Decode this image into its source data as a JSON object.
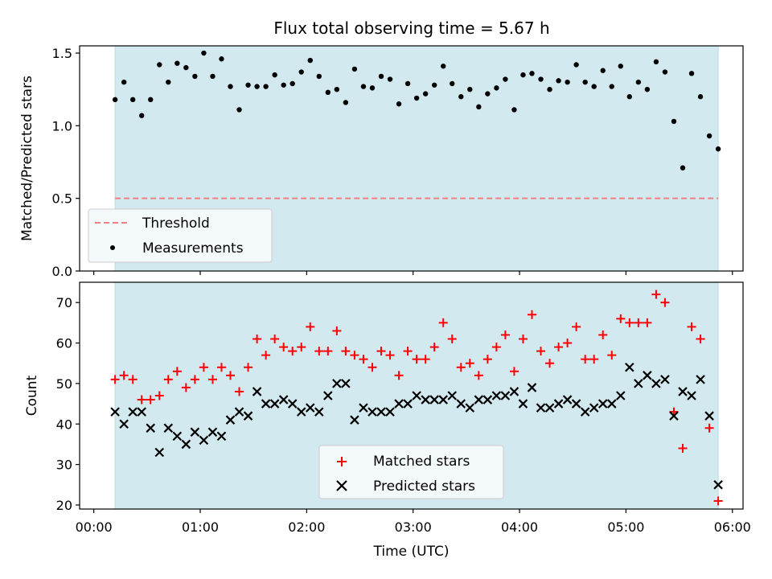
{
  "title": "Flux total observing time = 5.67 h",
  "colors": {
    "shade": "#d3e9f0",
    "shade_edge": "#b8dbe6",
    "threshold": "#f08080",
    "measurement": "#000000",
    "matched": "#ff0000",
    "predicted": "#000000",
    "axes": "#000000",
    "legend_bg": "#f4f9fb"
  },
  "chart_data": [
    {
      "type": "scatter",
      "ylabel": "Matched/Predicted stars",
      "xlabel": "",
      "xlim_minutes": [
        -8,
        366
      ],
      "ylim": [
        0.0,
        1.55
      ],
      "yticks": [
        0.0,
        0.5,
        1.0,
        1.5
      ],
      "ytick_labels": [
        "0.0",
        "0.5",
        "1.0",
        "1.5"
      ],
      "shaded_span_minutes": [
        12,
        352
      ],
      "legend_position": "lower-left",
      "threshold": {
        "name": "Threshold",
        "value": 0.5,
        "x_span_minutes": [
          12,
          352
        ],
        "style": "dashed"
      },
      "series": [
        {
          "name": "Measurements",
          "marker": "dot",
          "x_minutes": [
            12,
            17,
            22,
            27,
            32,
            37,
            42,
            47,
            52,
            57,
            62,
            67,
            72,
            77,
            82,
            87,
            92,
            97,
            102,
            107,
            112,
            117,
            122,
            127,
            132,
            137,
            142,
            147,
            152,
            157,
            162,
            167,
            172,
            177,
            182,
            187,
            192,
            197,
            202,
            207,
            212,
            217,
            222,
            227,
            232,
            237,
            242,
            247,
            252,
            257,
            262,
            267,
            272,
            277,
            282,
            287,
            292,
            297,
            302,
            307,
            312,
            317,
            322,
            327,
            332,
            337,
            342,
            347,
            352
          ],
          "y": [
            1.18,
            1.3,
            1.18,
            1.07,
            1.18,
            1.42,
            1.3,
            1.43,
            1.4,
            1.34,
            1.5,
            1.34,
            1.46,
            1.27,
            1.11,
            1.28,
            1.27,
            1.27,
            1.35,
            1.28,
            1.29,
            1.37,
            1.45,
            1.34,
            1.23,
            1.25,
            1.16,
            1.39,
            1.27,
            1.26,
            1.34,
            1.32,
            1.15,
            1.29,
            1.19,
            1.22,
            1.28,
            1.41,
            1.29,
            1.2,
            1.25,
            1.13,
            1.22,
            1.26,
            1.32,
            1.11,
            1.35,
            1.36,
            1.32,
            1.25,
            1.31,
            1.3,
            1.42,
            1.3,
            1.27,
            1.38,
            1.27,
            1.41,
            1.2,
            1.3,
            1.25,
            1.44,
            1.37,
            1.03,
            0.71,
            1.36,
            1.2,
            0.93,
            0.84
          ]
        }
      ]
    },
    {
      "type": "scatter",
      "ylabel": "Count",
      "xlabel": "Time (UTC)",
      "xlim_minutes": [
        -8,
        366
      ],
      "ylim": [
        19,
        75
      ],
      "yticks": [
        20,
        30,
        40,
        50,
        60,
        70
      ],
      "ytick_labels": [
        "20",
        "30",
        "40",
        "50",
        "60",
        "70"
      ],
      "xticks_minutes": [
        0,
        60,
        120,
        180,
        240,
        300,
        360
      ],
      "xtick_labels": [
        "00:00",
        "01:00",
        "02:00",
        "03:00",
        "04:00",
        "05:00",
        "06:00"
      ],
      "shaded_span_minutes": [
        12,
        352
      ],
      "legend_position": "lower-center",
      "x_minutes": [
        12,
        17,
        22,
        27,
        32,
        37,
        42,
        47,
        52,
        57,
        62,
        67,
        72,
        77,
        82,
        87,
        92,
        97,
        102,
        107,
        112,
        117,
        122,
        127,
        132,
        137,
        142,
        147,
        152,
        157,
        162,
        167,
        172,
        177,
        182,
        187,
        192,
        197,
        202,
        207,
        212,
        217,
        222,
        227,
        232,
        237,
        242,
        247,
        252,
        257,
        262,
        267,
        272,
        277,
        282,
        287,
        292,
        297,
        302,
        307,
        312,
        317,
        322,
        327,
        332,
        337,
        342,
        347,
        352
      ],
      "series": [
        {
          "name": "Matched stars",
          "marker": "plus",
          "values": [
            51,
            52,
            51,
            46,
            46,
            47,
            51,
            53,
            49,
            51,
            54,
            51,
            54,
            52,
            48,
            54,
            61,
            57,
            61,
            59,
            58,
            59,
            64,
            58,
            58,
            63,
            58,
            57,
            56,
            54,
            58,
            57,
            52,
            58,
            56,
            56,
            59,
            65,
            61,
            54,
            55,
            52,
            56,
            59,
            62,
            53,
            61,
            67,
            58,
            55,
            59,
            60,
            64,
            56,
            56,
            62,
            57,
            66,
            65,
            65,
            65,
            72,
            70,
            43,
            34,
            64,
            61,
            39,
            21
          ]
        },
        {
          "name": "Predicted stars",
          "marker": "x",
          "values": [
            43,
            40,
            43,
            43,
            39,
            33,
            39,
            37,
            35,
            38,
            36,
            38,
            37,
            41,
            43,
            42,
            48,
            45,
            45,
            46,
            45,
            43,
            44,
            43,
            47,
            50,
            50,
            41,
            44,
            43,
            43,
            43,
            45,
            45,
            47,
            46,
            46,
            46,
            47,
            45,
            44,
            46,
            46,
            47,
            47,
            48,
            45,
            49,
            44,
            44,
            45,
            46,
            45,
            43,
            44,
            45,
            45,
            47,
            54,
            50,
            52,
            50,
            51,
            42,
            48,
            47,
            51,
            42,
            25
          ]
        }
      ]
    }
  ]
}
